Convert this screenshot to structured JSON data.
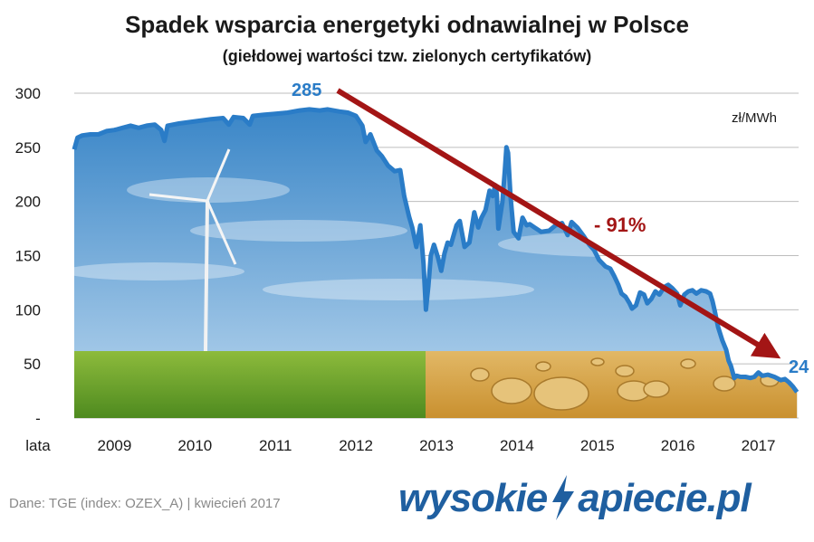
{
  "chart_data": {
    "type": "area",
    "title": "Spadek wsparcia energetyki odnawialnej w Polsce",
    "subtitle": "(giełdowej wartości tzw. zielonych certyfikatów)",
    "unit_label": "zł/MWh",
    "xlabel": "lata",
    "ylabel": "",
    "ylim": [
      0,
      300
    ],
    "yticks": [
      300,
      250,
      200,
      150,
      100,
      50
    ],
    "yzero_label": "-",
    "xlim": [
      2008.5,
      2017.5
    ],
    "xticks": [
      2009,
      2010,
      2011,
      2012,
      2013,
      2014,
      2015,
      2016,
      2017
    ],
    "grid": true,
    "series": [
      {
        "color": "#2a7cc7",
        "points": [
          [
            2008.5,
            248
          ],
          [
            2008.54,
            259
          ],
          [
            2008.6,
            261
          ],
          [
            2008.7,
            262
          ],
          [
            2008.8,
            262
          ],
          [
            2008.9,
            265
          ],
          [
            2009.0,
            266
          ],
          [
            2009.1,
            268
          ],
          [
            2009.2,
            270
          ],
          [
            2009.3,
            268
          ],
          [
            2009.4,
            270
          ],
          [
            2009.5,
            271
          ],
          [
            2009.58,
            266
          ],
          [
            2009.62,
            256
          ],
          [
            2009.66,
            270
          ],
          [
            2009.8,
            272
          ],
          [
            2010.0,
            274
          ],
          [
            2010.2,
            276
          ],
          [
            2010.35,
            277
          ],
          [
            2010.42,
            271
          ],
          [
            2010.48,
            278
          ],
          [
            2010.6,
            277
          ],
          [
            2010.68,
            271
          ],
          [
            2010.72,
            279
          ],
          [
            2010.85,
            280
          ],
          [
            2011.0,
            281
          ],
          [
            2011.15,
            282
          ],
          [
            2011.3,
            284
          ],
          [
            2011.42,
            285
          ],
          [
            2011.55,
            284
          ],
          [
            2011.65,
            285
          ],
          [
            2011.8,
            283
          ],
          [
            2011.9,
            282
          ],
          [
            2012.0,
            279
          ],
          [
            2012.08,
            270
          ],
          [
            2012.12,
            255
          ],
          [
            2012.18,
            262
          ],
          [
            2012.26,
            247
          ],
          [
            2012.32,
            242
          ],
          [
            2012.4,
            233
          ],
          [
            2012.48,
            228
          ],
          [
            2012.55,
            229
          ],
          [
            2012.6,
            205
          ],
          [
            2012.66,
            186
          ],
          [
            2012.7,
            176
          ],
          [
            2012.75,
            158
          ],
          [
            2012.8,
            178
          ],
          [
            2012.84,
            142
          ],
          [
            2012.87,
            100
          ],
          [
            2012.9,
            122
          ],
          [
            2012.93,
            150
          ],
          [
            2012.97,
            160
          ],
          [
            2013.02,
            148
          ],
          [
            2013.06,
            136
          ],
          [
            2013.1,
            152
          ],
          [
            2013.14,
            162
          ],
          [
            2013.18,
            160
          ],
          [
            2013.21,
            168
          ],
          [
            2013.25,
            178
          ],
          [
            2013.29,
            182
          ],
          [
            2013.35,
            158
          ],
          [
            2013.41,
            162
          ],
          [
            2013.47,
            190
          ],
          [
            2013.52,
            176
          ],
          [
            2013.56,
            185
          ],
          [
            2013.61,
            192
          ],
          [
            2013.66,
            210
          ],
          [
            2013.7,
            205
          ],
          [
            2013.73,
            215
          ],
          [
            2013.75,
            207
          ],
          [
            2013.77,
            175
          ],
          [
            2013.79,
            185
          ],
          [
            2013.82,
            200
          ],
          [
            2013.85,
            229
          ],
          [
            2013.87,
            250
          ],
          [
            2013.89,
            245
          ],
          [
            2013.92,
            205
          ],
          [
            2013.96,
            172
          ],
          [
            2014.02,
            166
          ],
          [
            2014.07,
            185
          ],
          [
            2014.12,
            178
          ],
          [
            2014.16,
            179
          ],
          [
            2014.22,
            176
          ],
          [
            2014.3,
            172
          ],
          [
            2014.4,
            173
          ],
          [
            2014.48,
            178
          ],
          [
            2014.56,
            180
          ],
          [
            2014.63,
            169
          ],
          [
            2014.68,
            181
          ],
          [
            2014.75,
            176
          ],
          [
            2014.83,
            168
          ],
          [
            2014.9,
            160
          ],
          [
            2014.96,
            155
          ],
          [
            2015.02,
            146
          ],
          [
            2015.1,
            140
          ],
          [
            2015.16,
            138
          ],
          [
            2015.21,
            131
          ],
          [
            2015.26,
            123
          ],
          [
            2015.3,
            115
          ],
          [
            2015.35,
            112
          ],
          [
            2015.4,
            106
          ],
          [
            2015.43,
            101
          ],
          [
            2015.48,
            104
          ],
          [
            2015.53,
            116
          ],
          [
            2015.58,
            114
          ],
          [
            2015.62,
            106
          ],
          [
            2015.67,
            110
          ],
          [
            2015.72,
            117
          ],
          [
            2015.77,
            114
          ],
          [
            2015.83,
            121
          ],
          [
            2015.88,
            123
          ],
          [
            2015.93,
            120
          ],
          [
            2015.99,
            115
          ],
          [
            2016.03,
            104
          ],
          [
            2016.08,
            114
          ],
          [
            2016.13,
            117
          ],
          [
            2016.18,
            118
          ],
          [
            2016.23,
            115
          ],
          [
            2016.29,
            118
          ],
          [
            2016.35,
            117
          ],
          [
            2016.4,
            115
          ],
          [
            2016.43,
            108
          ],
          [
            2016.46,
            98
          ],
          [
            2016.5,
            84
          ],
          [
            2016.55,
            72
          ],
          [
            2016.6,
            63
          ],
          [
            2016.63,
            53
          ],
          [
            2016.66,
            48
          ],
          [
            2016.7,
            37
          ],
          [
            2016.73,
            39
          ],
          [
            2016.78,
            38
          ],
          [
            2016.84,
            38
          ],
          [
            2016.9,
            37
          ],
          [
            2016.95,
            38
          ],
          [
            2017.0,
            42
          ],
          [
            2017.05,
            39
          ],
          [
            2017.12,
            40
          ],
          [
            2017.2,
            38
          ],
          [
            2017.28,
            35
          ],
          [
            2017.33,
            36
          ],
          [
            2017.38,
            33
          ],
          [
            2017.43,
            29
          ],
          [
            2017.48,
            24
          ]
        ]
      }
    ],
    "annotations": {
      "start_value": "285",
      "end_value": "24",
      "change": "- 91%"
    }
  },
  "colors": {
    "line": "#2a7cc7",
    "arrow": "#a31515",
    "annotation_value": "#2a7cc7",
    "change_label": "#a31515",
    "sky_top": "#2f7fc4",
    "sky_bottom": "#bcd8ef",
    "grass": "#6aa02a",
    "field": "#d4a448"
  },
  "footer": {
    "source": "Dane: TGE (index: OZEX_A)   |   kwiecień 2017",
    "logo_left": "wysokie",
    "logo_right": "apiecie.pl",
    "logo_icon": "lightning-bolt-icon"
  }
}
